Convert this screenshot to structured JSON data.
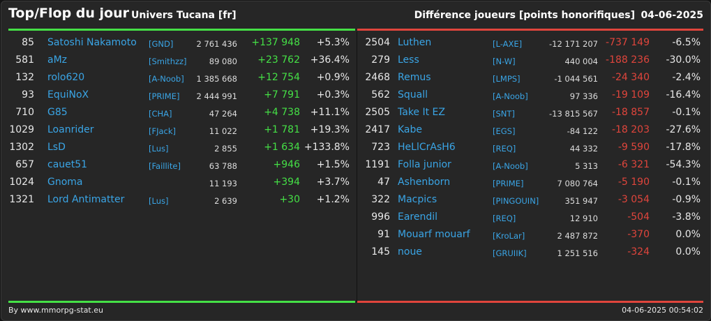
{
  "header": {
    "title": "Top/Flop du jour",
    "universe": "Univers Tucana [fr]",
    "metric": "Différence joueurs [points honorifiques]",
    "date": "04-06-2025"
  },
  "colors": {
    "positive": "#45e046",
    "negative": "#e0453c",
    "link": "#3aa5e6"
  },
  "top": [
    {
      "rank": "85",
      "name": "Satoshi Nakamoto",
      "tag": "[GND]",
      "points": "2 761 436",
      "diff": "+137 948",
      "pct": "+5.3%"
    },
    {
      "rank": "581",
      "name": "aMz",
      "tag": "[Smithzz]",
      "points": "89 080",
      "diff": "+23 762",
      "pct": "+36.4%"
    },
    {
      "rank": "132",
      "name": "rolo620",
      "tag": "[A-Noob]",
      "points": "1 385 668",
      "diff": "+12 754",
      "pct": "+0.9%"
    },
    {
      "rank": "93",
      "name": "EquiNoX",
      "tag": "[PRIME]",
      "points": "2 444 991",
      "diff": "+7 791",
      "pct": "+0.3%"
    },
    {
      "rank": "710",
      "name": "G85",
      "tag": "[CHA]",
      "points": "47 264",
      "diff": "+4 738",
      "pct": "+11.1%"
    },
    {
      "rank": "1029",
      "name": "Loanrider",
      "tag": "[FJack]",
      "points": "11 022",
      "diff": "+1 781",
      "pct": "+19.3%"
    },
    {
      "rank": "1302",
      "name": "LsD",
      "tag": "[Lus]",
      "points": "2 855",
      "diff": "+1 634",
      "pct": "+133.8%"
    },
    {
      "rank": "657",
      "name": "cauet51",
      "tag": "[Faillite]",
      "points": "63 788",
      "diff": "+946",
      "pct": "+1.5%"
    },
    {
      "rank": "1024",
      "name": "Gnoma",
      "tag": "",
      "points": "11 193",
      "diff": "+394",
      "pct": "+3.7%"
    },
    {
      "rank": "1321",
      "name": "Lord Antimatter",
      "tag": "[Lus]",
      "points": "2 639",
      "diff": "+30",
      "pct": "+1.2%"
    }
  ],
  "flop": [
    {
      "rank": "2504",
      "name": "Luthen",
      "tag": "[L-AXE]",
      "points": "-12 171 207",
      "diff": "-737 149",
      "pct": "-6.5%"
    },
    {
      "rank": "279",
      "name": "Less",
      "tag": "[N-W]",
      "points": "440 004",
      "diff": "-188 236",
      "pct": "-30.0%"
    },
    {
      "rank": "2468",
      "name": "Remus",
      "tag": "[LMPS]",
      "points": "-1 044 561",
      "diff": "-24 340",
      "pct": "-2.4%"
    },
    {
      "rank": "562",
      "name": "Squall",
      "tag": "[A-Noob]",
      "points": "97 336",
      "diff": "-19 109",
      "pct": "-16.4%"
    },
    {
      "rank": "2505",
      "name": "Take It EZ",
      "tag": "[SNT]",
      "points": "-13 815 567",
      "diff": "-18 857",
      "pct": "-0.1%"
    },
    {
      "rank": "2417",
      "name": "Kabe",
      "tag": "[EGS]",
      "points": "-84 122",
      "diff": "-18 203",
      "pct": "-27.6%"
    },
    {
      "rank": "723",
      "name": "HeLlCrAsH6",
      "tag": "[REQ]",
      "points": "44 332",
      "diff": "-9 590",
      "pct": "-17.8%"
    },
    {
      "rank": "1191",
      "name": "Folla junior",
      "tag": "[A-Noob]",
      "points": "5 313",
      "diff": "-6 321",
      "pct": "-54.3%"
    },
    {
      "rank": "47",
      "name": "Ashenborn",
      "tag": "[PRIME]",
      "points": "7 080 764",
      "diff": "-5 190",
      "pct": "-0.1%"
    },
    {
      "rank": "322",
      "name": "Macpics",
      "tag": "[PINGOUIN]",
      "points": "351 947",
      "diff": "-3 054",
      "pct": "-0.9%"
    },
    {
      "rank": "996",
      "name": "Earendil",
      "tag": "[REQ]",
      "points": "12 910",
      "diff": "-504",
      "pct": "-3.8%"
    },
    {
      "rank": "91",
      "name": "Mouarf mouarf",
      "tag": "[KroLar]",
      "points": "2 487 872",
      "diff": "-370",
      "pct": "0.0%"
    },
    {
      "rank": "145",
      "name": "noue",
      "tag": "[GRUIIK]",
      "points": "1 251 516",
      "diff": "-324",
      "pct": "0.0%"
    }
  ],
  "footer": {
    "credit": "By www.mmorpg-stat.eu",
    "timestamp": "04-06-2025 00:54:02"
  }
}
